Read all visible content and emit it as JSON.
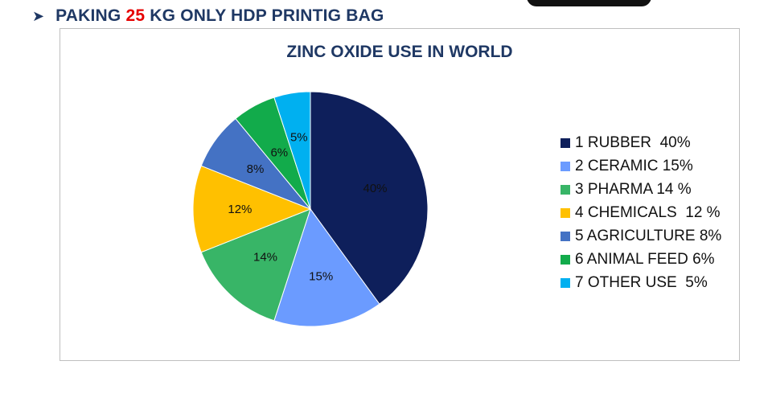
{
  "header": {
    "arrow_icon": "arrow-right-icon",
    "prefix": "PAKING ",
    "highlight": "25",
    "suffix": " KG ONLY HDP PRINTIG BAG",
    "highlight_color": "#e60000",
    "text_color": "#1f3864"
  },
  "chart_data": {
    "type": "pie",
    "title": "ZINC OXIDE USE IN WORLD",
    "slices": [
      {
        "legend": "1 RUBBER  40%",
        "value": 40,
        "label": "40%",
        "color": "#0e1f5b"
      },
      {
        "legend": "2 CERAMIC 15%",
        "value": 15,
        "label": "15%",
        "color": "#6b9bff"
      },
      {
        "legend": "3 PHARMA 14 %",
        "value": 14,
        "label": "14%",
        "color": "#38b567"
      },
      {
        "legend": "4 CHEMICALS  12 %",
        "value": 12,
        "label": "12%",
        "color": "#ffc000"
      },
      {
        "legend": "5 AGRICULTURE 8%",
        "value": 8,
        "label": "8%",
        "color": "#4472c4"
      },
      {
        "legend": "6 ANIMAL FEED 6%",
        "value": 6,
        "label": "6%",
        "color": "#12ab4b"
      },
      {
        "legend": "7 OTHER USE  5%",
        "value": 5,
        "label": "5%",
        "color": "#00b0f0"
      }
    ],
    "start": "top",
    "direction": "clockwise",
    "legend_position": "right"
  }
}
